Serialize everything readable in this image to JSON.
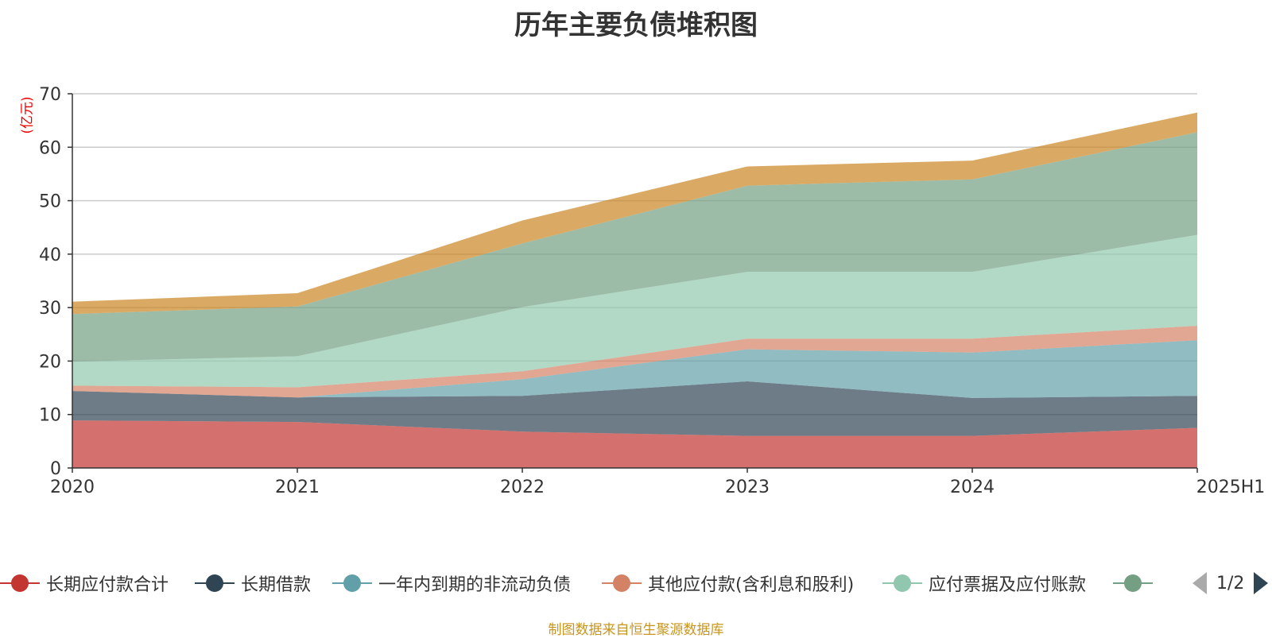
{
  "chart_data": {
    "type": "area",
    "stacked": true,
    "title": "历年主要负债堆积图",
    "y_unit": "(亿元)",
    "ylim": [
      0,
      70
    ],
    "y_ticks": [
      "0",
      "10",
      "20",
      "30",
      "40",
      "50",
      "60",
      "70"
    ],
    "categories": [
      "2020",
      "2021",
      "2022",
      "2023",
      "2024",
      "2025H1"
    ],
    "grid": true,
    "legend_position": "bottom",
    "series": [
      {
        "name": "长期应付款合计",
        "color": "#c23531",
        "values": [
          8.9,
          8.6,
          6.8,
          6.0,
          6.0,
          7.5
        ]
      },
      {
        "name": "长期借款",
        "color": "#2f4554",
        "values": [
          5.5,
          4.6,
          6.7,
          10.2,
          7.1,
          6.0
        ]
      },
      {
        "name": "一年内到期的非流动负债",
        "color": "#61a0a8",
        "values": [
          0.0,
          0.0,
          3.1,
          6.0,
          8.5,
          10.4
        ]
      },
      {
        "name": "其他应付款(含利息和股利)",
        "color": "#d48265",
        "values": [
          1.0,
          1.9,
          1.5,
          2.0,
          2.6,
          2.7
        ]
      },
      {
        "name": "应付票据及应付账款",
        "color": "#91c7ae",
        "values": [
          4.5,
          5.8,
          12.0,
          12.5,
          12.5,
          17.0
        ]
      },
      {
        "color": "#749f83",
        "values": [
          8.9,
          9.3,
          11.9,
          16.1,
          17.3,
          19.2
        ]
      },
      {
        "color": "#ca8622",
        "values": [
          2.3,
          2.5,
          4.3,
          3.6,
          3.5,
          3.7
        ]
      }
    ]
  },
  "legend": {
    "items": [
      {
        "label": "长期应付款合计",
        "color": "#c23531"
      },
      {
        "label": "长期借款",
        "color": "#2f4554"
      },
      {
        "label": "一年内到期的非流动负债",
        "color": "#61a0a8"
      },
      {
        "label": "其他应付款(含利息和股利)",
        "color": "#d48265"
      },
      {
        "label": "应付票据及应付账款",
        "color": "#91c7ae"
      },
      {
        "label": "",
        "color": "#749f83"
      }
    ],
    "pager": "1/2"
  },
  "source_note": "制图数据来自恒生聚源数据库"
}
